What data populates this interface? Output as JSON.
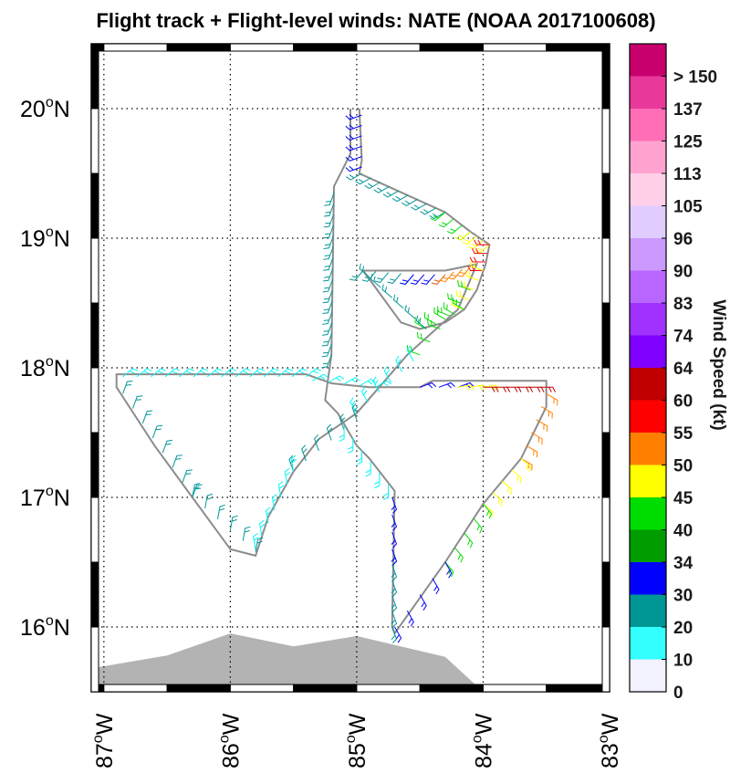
{
  "title": "Flight track + Flight-level winds: NATE (NOAA 2017100608)",
  "map": {
    "lon_range": [
      -87.1,
      -83.0
    ],
    "lat_range": [
      15.5,
      20.5
    ],
    "lat_ticks": [
      {
        "value": 16,
        "num": "16",
        "hemi": "N"
      },
      {
        "value": 17,
        "num": "17",
        "hemi": "N"
      },
      {
        "value": 18,
        "num": "18",
        "hemi": "N"
      },
      {
        "value": 19,
        "num": "19",
        "hemi": "N"
      },
      {
        "value": 20,
        "num": "20",
        "hemi": "N"
      }
    ],
    "lon_ticks": [
      {
        "value": -87,
        "num": "87",
        "hemi": "W"
      },
      {
        "value": -86,
        "num": "86",
        "hemi": "W"
      },
      {
        "value": -85,
        "num": "85",
        "hemi": "W"
      },
      {
        "value": -84,
        "num": "84",
        "hemi": "W"
      },
      {
        "value": -83,
        "num": "83",
        "hemi": "W"
      }
    ],
    "degree_symbol": "o",
    "land_color": "#b3b3b3",
    "track_color": "#8c8c8c",
    "land": [
      [
        -87.1,
        15.5
      ],
      [
        -87.1,
        15.68
      ],
      [
        -86.5,
        15.78
      ],
      [
        -86.0,
        15.95
      ],
      [
        -85.5,
        15.85
      ],
      [
        -85.0,
        15.93
      ],
      [
        -84.3,
        15.77
      ],
      [
        -84.0,
        15.5
      ]
    ],
    "track": [
      [
        -84.98,
        20.0
      ],
      [
        -84.96,
        19.6
      ],
      [
        -84.98,
        19.5
      ],
      [
        -84.3,
        19.2
      ],
      [
        -84.1,
        19.05
      ],
      [
        -83.95,
        18.95
      ],
      [
        -83.98,
        18.8
      ],
      [
        -84.05,
        18.6
      ],
      [
        -84.15,
        18.45
      ],
      [
        -84.3,
        18.35
      ],
      [
        -84.5,
        18.3
      ],
      [
        -84.65,
        18.35
      ],
      [
        -84.8,
        18.55
      ],
      [
        -84.95,
        18.75
      ],
      [
        -84.7,
        18.75
      ],
      [
        -84.3,
        18.75
      ],
      [
        -84.05,
        18.8
      ],
      [
        -84.2,
        18.45
      ],
      [
        -84.6,
        18.1
      ],
      [
        -85.0,
        17.65
      ],
      [
        -85.3,
        17.45
      ],
      [
        -85.5,
        17.2
      ],
      [
        -85.7,
        16.85
      ],
      [
        -85.8,
        16.55
      ],
      [
        -86.0,
        16.6
      ],
      [
        -86.3,
        17.0
      ],
      [
        -86.6,
        17.4
      ],
      [
        -86.9,
        17.85
      ],
      [
        -86.9,
        17.95
      ],
      [
        -86.0,
        17.95
      ],
      [
        -85.4,
        17.95
      ],
      [
        -85.2,
        17.88
      ],
      [
        -84.9,
        17.85
      ],
      [
        -84.5,
        17.85
      ],
      [
        -84.4,
        17.9
      ],
      [
        -83.5,
        17.9
      ],
      [
        -83.5,
        17.7
      ],
      [
        -83.7,
        17.3
      ],
      [
        -84.0,
        16.95
      ],
      [
        -84.3,
        16.5
      ],
      [
        -84.7,
        15.95
      ],
      [
        -84.72,
        16.0
      ],
      [
        -84.7,
        17.05
      ],
      [
        -84.9,
        17.3
      ],
      [
        -85.0,
        17.4
      ],
      [
        -85.15,
        17.65
      ],
      [
        -85.25,
        17.75
      ],
      [
        -85.2,
        18.1
      ],
      [
        -85.18,
        19.4
      ],
      [
        -85.05,
        19.65
      ],
      [
        -85.05,
        20.0
      ]
    ],
    "barb_segments": [
      {
        "lon1": -84.96,
        "lat1": 19.95,
        "lon2": -84.96,
        "lat2": 19.55,
        "n": 6,
        "color": "#0000ff",
        "dir": 200
      },
      {
        "lon1": -84.96,
        "lat1": 19.5,
        "lon2": -84.3,
        "lat2": 19.2,
        "n": 10,
        "color": "#019696",
        "dir": 210
      },
      {
        "lon1": -84.3,
        "lat1": 19.2,
        "lon2": -84.1,
        "lat2": 19.05,
        "n": 4,
        "color": "#00dd00",
        "dir": 220
      },
      {
        "lon1": -84.1,
        "lat1": 19.05,
        "lon2": -83.95,
        "lat2": 18.95,
        "n": 4,
        "color": "#ffff00",
        "dir": 220
      },
      {
        "lon1": -83.95,
        "lat1": 18.95,
        "lon2": -84.0,
        "lat2": 18.75,
        "n": 4,
        "color": "#ff0000",
        "dir": 180
      },
      {
        "lon1": -84.0,
        "lat1": 18.75,
        "lon2": -84.15,
        "lat2": 18.45,
        "n": 5,
        "color": "#ffff00",
        "dir": 160
      },
      {
        "lon1": -84.15,
        "lat1": 18.45,
        "lon2": -84.45,
        "lat2": 18.3,
        "n": 5,
        "color": "#00dd00",
        "dir": 150
      },
      {
        "lon1": -84.45,
        "lat1": 18.3,
        "lon2": -84.9,
        "lat2": 18.7,
        "n": 6,
        "color": "#019696",
        "dir": 140
      },
      {
        "lon1": -84.95,
        "lat1": 18.75,
        "lon2": -84.55,
        "lat2": 18.72,
        "n": 5,
        "color": "#019696",
        "dir": 230
      },
      {
        "lon1": -84.55,
        "lat1": 18.72,
        "lon2": -84.3,
        "lat2": 18.72,
        "n": 4,
        "color": "#0000ff",
        "dir": 230
      },
      {
        "lon1": -84.3,
        "lat1": 18.72,
        "lon2": -84.1,
        "lat2": 18.78,
        "n": 4,
        "color": "#ff8000",
        "dir": 230
      },
      {
        "lon1": -84.1,
        "lat1": 18.6,
        "lon2": -84.5,
        "lat2": 18.1,
        "n": 6,
        "color": "#00dd00",
        "dir": 160
      },
      {
        "lon1": -84.55,
        "lat1": 18.05,
        "lon2": -85.0,
        "lat2": 17.65,
        "n": 6,
        "color": "#00f6f6",
        "dir": 120
      },
      {
        "lon1": -85.0,
        "lat1": 17.6,
        "lon2": -85.5,
        "lat2": 17.2,
        "n": 6,
        "color": "#019696",
        "dir": 110
      },
      {
        "lon1": -85.5,
        "lat1": 17.2,
        "lon2": -85.8,
        "lat2": 16.6,
        "n": 7,
        "color": "#00f6f6",
        "dir": 100
      },
      {
        "lon1": -85.8,
        "lat1": 16.58,
        "lon2": -86.3,
        "lat2": 17.0,
        "n": 6,
        "color": "#019696",
        "dir": 80
      },
      {
        "lon1": -86.3,
        "lat1": 17.0,
        "lon2": -86.85,
        "lat2": 17.8,
        "n": 8,
        "color": "#019696",
        "dir": 70
      },
      {
        "lon1": -86.85,
        "lat1": 17.93,
        "lon2": -85.4,
        "lat2": 17.93,
        "n": 14,
        "color": "#00f6f6",
        "dir": 40
      },
      {
        "lon1": -85.35,
        "lat1": 17.9,
        "lon2": -84.85,
        "lat2": 17.85,
        "n": 5,
        "color": "#00f6f6",
        "dir": 30
      },
      {
        "lon1": -84.5,
        "lat1": 17.85,
        "lon2": -84.2,
        "lat2": 17.85,
        "n": 3,
        "color": "#0000ff",
        "dir": 20
      },
      {
        "lon1": -84.2,
        "lat1": 17.85,
        "lon2": -84.0,
        "lat2": 17.85,
        "n": 3,
        "color": "#ffff00",
        "dir": 10
      },
      {
        "lon1": -84.0,
        "lat1": 17.85,
        "lon2": -83.55,
        "lat2": 17.85,
        "n": 6,
        "color": "#c00000",
        "dir": 0
      },
      {
        "lon1": -83.5,
        "lat1": 17.8,
        "lon2": -83.7,
        "lat2": 17.3,
        "n": 6,
        "color": "#ff8000",
        "dir": 330
      },
      {
        "lon1": -83.7,
        "lat1": 17.3,
        "lon2": -84.0,
        "lat2": 16.95,
        "n": 5,
        "color": "#ffff00",
        "dir": 320
      },
      {
        "lon1": -84.0,
        "lat1": 16.95,
        "lon2": -84.3,
        "lat2": 16.5,
        "n": 5,
        "color": "#00dd00",
        "dir": 310
      },
      {
        "lon1": -84.3,
        "lat1": 16.5,
        "lon2": -84.7,
        "lat2": 16.0,
        "n": 5,
        "color": "#0000ff",
        "dir": 300
      },
      {
        "lon1": -84.72,
        "lat1": 16.0,
        "lon2": -84.72,
        "lat2": 16.6,
        "n": 6,
        "color": "#019696",
        "dir": 290
      },
      {
        "lon1": -84.72,
        "lat1": 16.6,
        "lon2": -84.72,
        "lat2": 17.0,
        "n": 4,
        "color": "#0000ff",
        "dir": 290
      },
      {
        "lon1": -84.75,
        "lat1": 17.1,
        "lon2": -85.1,
        "lat2": 17.55,
        "n": 6,
        "color": "#00f6f6",
        "dir": 270
      },
      {
        "lon1": -85.2,
        "lat1": 18.1,
        "lon2": -85.18,
        "lat2": 19.35,
        "n": 16,
        "color": "#019696",
        "dir": 250
      }
    ]
  },
  "colorbar": {
    "title": "Wind Speed (kt)",
    "bins": [
      {
        "color": "#f2f2ff",
        "label": "0"
      },
      {
        "color": "#34ffff",
        "label": "10"
      },
      {
        "color": "#019696",
        "label": "20"
      },
      {
        "color": "#0000ff",
        "label": "30"
      },
      {
        "color": "#019c00",
        "label": "34"
      },
      {
        "color": "#00dd00",
        "label": "40"
      },
      {
        "color": "#ffff00",
        "label": "45"
      },
      {
        "color": "#ff8000",
        "label": "50"
      },
      {
        "color": "#ff0000",
        "label": "55"
      },
      {
        "color": "#c00000",
        "label": "60"
      },
      {
        "color": "#8000ff",
        "label": "64"
      },
      {
        "color": "#9f32ff",
        "label": "74"
      },
      {
        "color": "#b866ff",
        "label": "83"
      },
      {
        "color": "#cc99ff",
        "label": "90"
      },
      {
        "color": "#e0ccff",
        "label": "96"
      },
      {
        "color": "#ffd0e8",
        "label": "105"
      },
      {
        "color": "#ffa3d0",
        "label": "113"
      },
      {
        "color": "#ff6eb6",
        "label": "125"
      },
      {
        "color": "#e8389a",
        "label": "137"
      },
      {
        "color": "#c8006e",
        "label": "> 150"
      }
    ]
  }
}
